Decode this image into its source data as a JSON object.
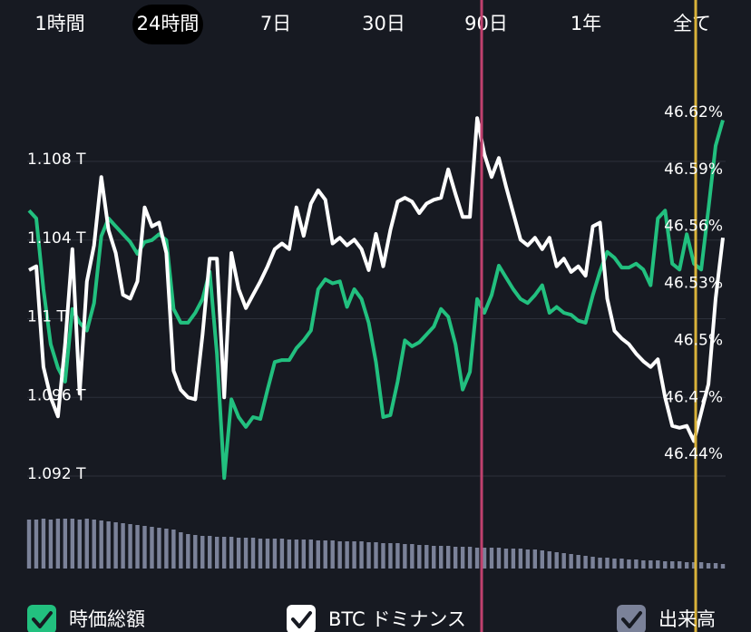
{
  "tabs": [
    {
      "label": "1時間",
      "selected": false
    },
    {
      "label": "24時間",
      "selected": true
    },
    {
      "label": "7日",
      "selected": false
    },
    {
      "label": "30日",
      "selected": false
    },
    {
      "label": "90日",
      "selected": false
    },
    {
      "label": "1年",
      "selected": false
    },
    {
      "label": "全て",
      "selected": false
    }
  ],
  "chart_data": {
    "type": "line",
    "ylim": [
      1.09,
      1.112
    ],
    "yticks": [
      {
        "value": 1.092,
        "label": "1.092 T"
      },
      {
        "value": 1.096,
        "label": "1.096 T"
      },
      {
        "value": 1.1,
        "label": "1.1 T"
      },
      {
        "value": 1.104,
        "label": "1.104 T"
      },
      {
        "value": 1.108,
        "label": "1.108 T"
      }
    ],
    "y2lim": [
      46.41,
      46.64
    ],
    "y2ticks": [
      {
        "value": 46.44,
        "label": "46.44%"
      },
      {
        "value": 46.47,
        "label": "46.47%"
      },
      {
        "value": 46.5,
        "label": "46.5%"
      },
      {
        "value": 46.53,
        "label": "46.53%"
      },
      {
        "value": 46.56,
        "label": "46.56%"
      },
      {
        "value": 46.59,
        "label": "46.59%"
      },
      {
        "value": 46.62,
        "label": "46.62%"
      }
    ],
    "y3lim": [
      0,
      60
    ],
    "grid": true,
    "series": [
      {
        "name": "時価総額",
        "color": "#22c07f",
        "axis": "y",
        "values": [
          1.1055,
          1.1051,
          1.1015,
          1.0987,
          1.0975,
          1.0968,
          1.1005,
          1.0998,
          1.0994,
          1.1008,
          1.1042,
          1.1051,
          1.1047,
          1.1043,
          1.1039,
          1.1033,
          1.1039,
          1.104,
          1.1043,
          1.104,
          1.1005,
          1.0998,
          1.0998,
          1.1003,
          1.101,
          1.1024,
          1.0982,
          1.0919,
          1.0959,
          1.095,
          1.0945,
          1.095,
          1.0949,
          1.0964,
          1.0978,
          1.0979,
          1.0979,
          1.0985,
          1.0989,
          1.0994,
          1.1015,
          1.102,
          1.1018,
          1.1019,
          1.1006,
          1.1015,
          1.101,
          1.0998,
          1.0978,
          1.095,
          1.0951,
          1.0968,
          1.0989,
          1.0986,
          1.0988,
          1.0992,
          1.0996,
          1.1005,
          1.1001,
          1.0987,
          1.0964,
          1.0973,
          1.101,
          1.1003,
          1.1012,
          1.1027,
          1.1021,
          1.1015,
          1.101,
          1.1008,
          1.1012,
          1.1017,
          1.1003,
          1.1006,
          1.1003,
          1.1002,
          1.0999,
          1.0998,
          1.1012,
          1.1024,
          1.1034,
          1.1031,
          1.1026,
          1.1026,
          1.1028,
          1.1025,
          1.1017,
          1.1051,
          1.1055,
          1.1028,
          1.1025,
          1.1043,
          1.1028,
          1.1025,
          1.1056,
          1.1088,
          1.1101
        ]
      },
      {
        "name": "BTC ドミナンス",
        "color": "#ffffff",
        "axis": "y2",
        "values": [
          46.537,
          46.539,
          46.486,
          46.47,
          46.46,
          46.498,
          46.548,
          46.472,
          46.531,
          46.55,
          46.586,
          46.558,
          46.546,
          46.524,
          46.522,
          46.531,
          46.57,
          46.56,
          46.562,
          46.546,
          46.484,
          46.474,
          46.47,
          46.469,
          46.503,
          46.543,
          46.543,
          46.47,
          46.546,
          46.527,
          46.517,
          46.524,
          46.531,
          46.539,
          46.548,
          46.551,
          46.548,
          46.57,
          46.555,
          46.572,
          46.579,
          46.574,
          46.551,
          46.554,
          46.55,
          46.553,
          46.548,
          46.537,
          46.556,
          46.539,
          46.558,
          46.573,
          46.575,
          46.573,
          46.567,
          46.572,
          46.574,
          46.575,
          46.59,
          46.577,
          46.565,
          46.565,
          46.617,
          46.598,
          46.586,
          46.596,
          46.581,
          46.567,
          46.553,
          46.55,
          46.554,
          46.548,
          46.554,
          46.539,
          46.543,
          46.536,
          46.539,
          46.534,
          46.56,
          46.562,
          46.522,
          46.505,
          46.501,
          46.498,
          46.493,
          46.489,
          46.486,
          46.49,
          46.47,
          46.455,
          46.454,
          46.455,
          46.447,
          46.462,
          46.477,
          46.522,
          46.554
        ]
      },
      {
        "name": "出来高",
        "color": "#7b8299",
        "type": "bar",
        "axis": "y3",
        "values": [
          54,
          54,
          55,
          54,
          55,
          55,
          55,
          54,
          55,
          54,
          53,
          52,
          51,
          50,
          49,
          48,
          47,
          46,
          45,
          44,
          43,
          40,
          38,
          37,
          36,
          36,
          35,
          35,
          35,
          34,
          34,
          34,
          33,
          33,
          33,
          33,
          32,
          32,
          32,
          32,
          31,
          31,
          31,
          30,
          30,
          30,
          30,
          29,
          29,
          28,
          28,
          28,
          27,
          27,
          26,
          26,
          25,
          25,
          25,
          24,
          24,
          24,
          23,
          23,
          23,
          23,
          22,
          22,
          22,
          21,
          21,
          20,
          19,
          18,
          17,
          16,
          15,
          14,
          13,
          12,
          12,
          11,
          11,
          10,
          10,
          9,
          9,
          9,
          8,
          8,
          8,
          7,
          7,
          7,
          6,
          6,
          5
        ]
      }
    ]
  }
}
